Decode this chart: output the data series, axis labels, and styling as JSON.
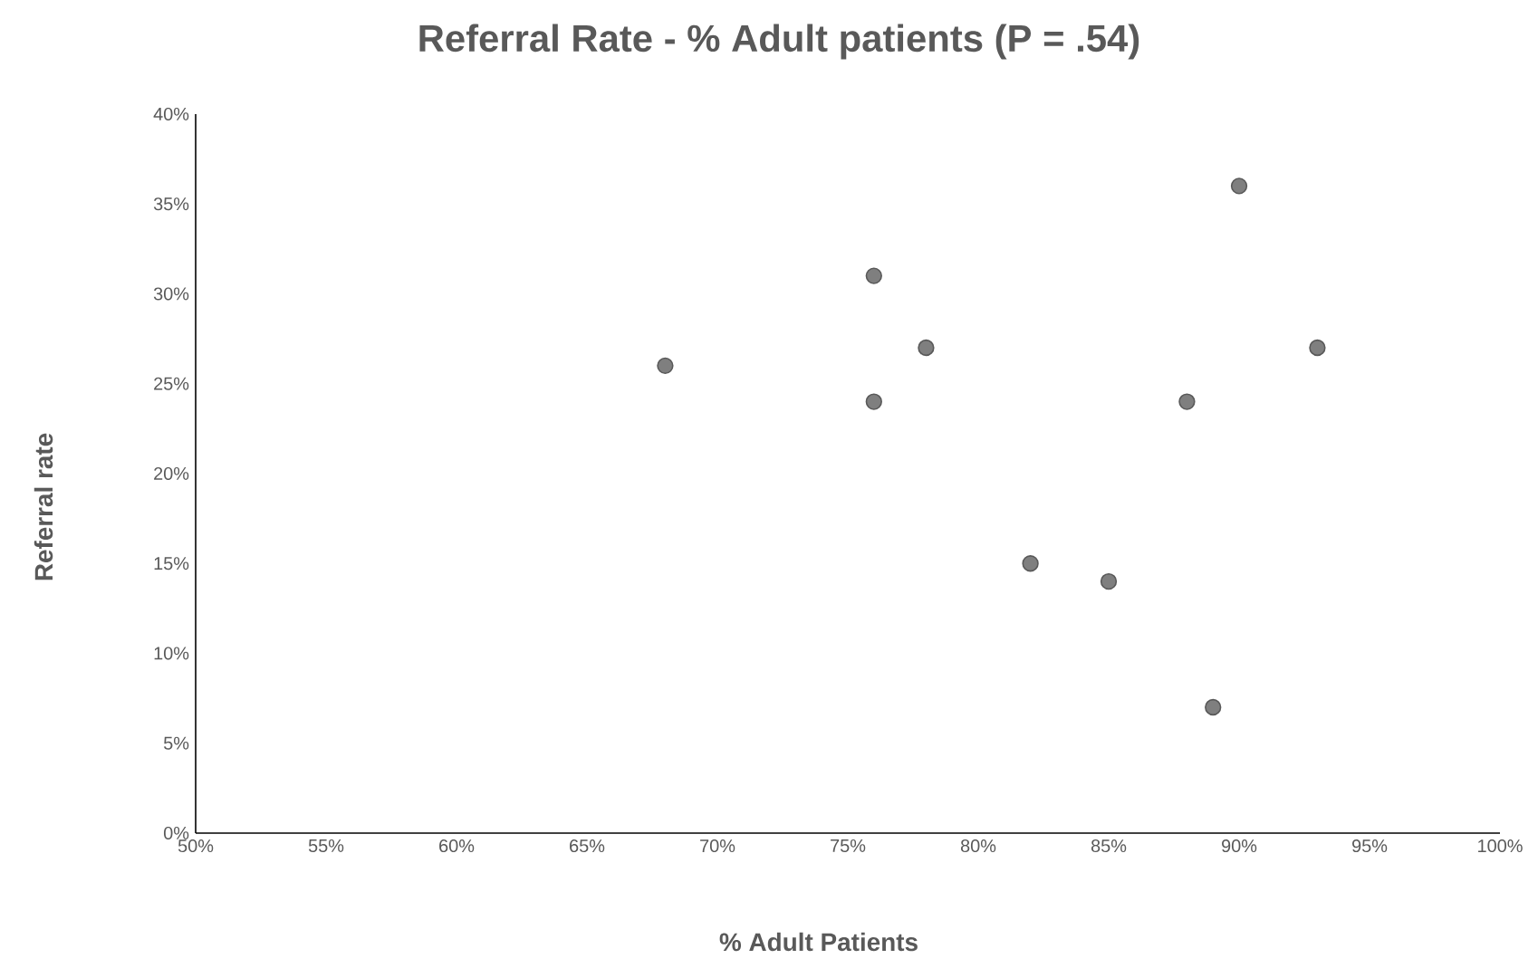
{
  "chart_data": {
    "type": "scatter",
    "title": "Referral Rate - % Adult patients (P = .54)",
    "xlabel": "% Adult Patients",
    "ylabel": "Referral rate",
    "series": [
      {
        "color": "#7f7f7f",
        "x": [
          68,
          76,
          76,
          78,
          82,
          85,
          88,
          90,
          93,
          89
        ],
        "values": [
          26,
          31,
          24,
          27,
          15,
          14,
          24,
          36,
          27,
          7
        ]
      }
    ],
    "xlim": [
      50,
      100
    ],
    "xticks": [
      {
        "value": 50,
        "label": "50%"
      },
      {
        "value": 55,
        "label": "55%"
      },
      {
        "value": 60,
        "label": "60%"
      },
      {
        "value": 65,
        "label": "65%"
      },
      {
        "value": 70,
        "label": "70%"
      },
      {
        "value": 75,
        "label": "75%"
      },
      {
        "value": 80,
        "label": "80%"
      },
      {
        "value": 85,
        "label": "85%"
      },
      {
        "value": 90,
        "label": "90%"
      },
      {
        "value": 95,
        "label": "95%"
      },
      {
        "value": 100,
        "label": "100%"
      }
    ],
    "ylim": [
      0,
      40
    ],
    "yticks": [
      {
        "value": 0,
        "label": "0%"
      },
      {
        "value": 5,
        "label": "5%"
      },
      {
        "value": 10,
        "label": "10%"
      },
      {
        "value": 15,
        "label": "15%"
      },
      {
        "value": 20,
        "label": "20%"
      },
      {
        "value": 25,
        "label": "25%"
      },
      {
        "value": 30,
        "label": "30%"
      },
      {
        "value": 35,
        "label": "35%"
      },
      {
        "value": 40,
        "label": "40%"
      }
    ],
    "marker": "circle"
  }
}
